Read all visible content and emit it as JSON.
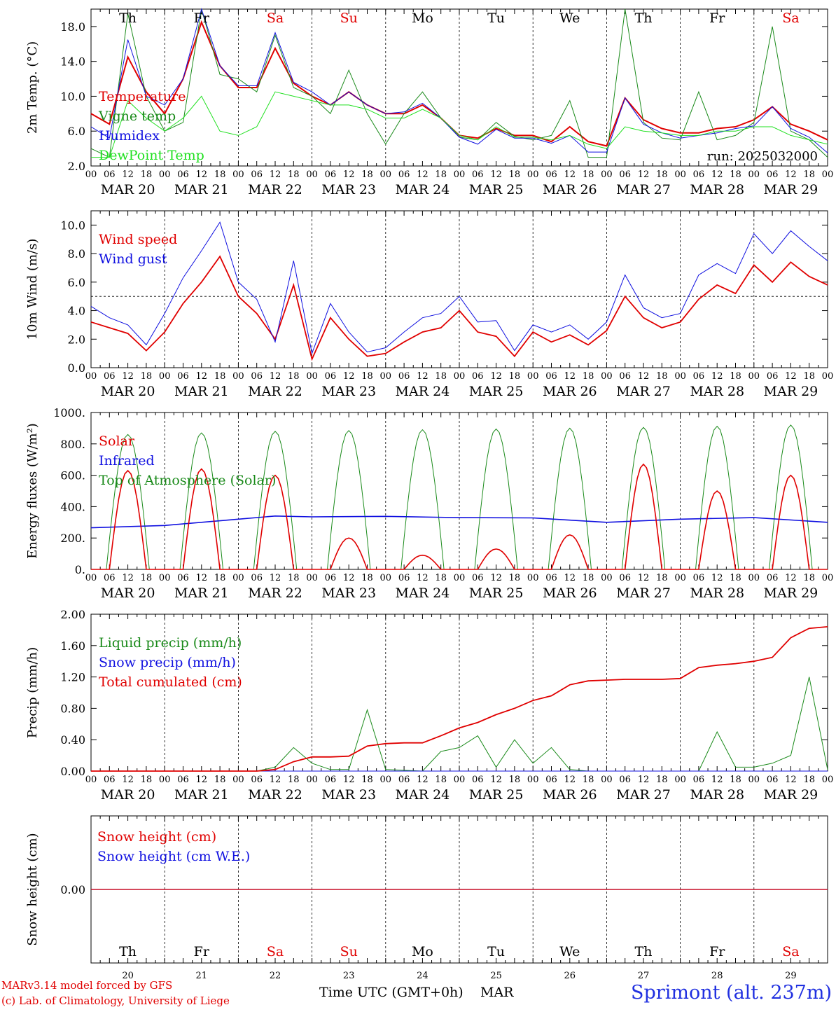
{
  "colors": {
    "red": "#e00000",
    "green": "#1a8a1a",
    "blue": "#1010e0",
    "lightgreen": "#20e020",
    "weekend": "#e00000",
    "weekday": "#000000",
    "siteBlue": "#2030e0"
  },
  "x_axis": {
    "hour_labels": [
      "00",
      "06",
      "12",
      "18"
    ],
    "final_hour_label": "00",
    "date_labels": [
      "MAR 20",
      "MAR 21",
      "MAR 22",
      "MAR 23",
      "MAR 24",
      "MAR 25",
      "MAR 26",
      "MAR 27",
      "MAR 28",
      "MAR 29"
    ],
    "day_names": [
      {
        "name": "Th",
        "weekend": false
      },
      {
        "name": "Fr",
        "weekend": false
      },
      {
        "name": "Sa",
        "weekend": true
      },
      {
        "name": "Su",
        "weekend": true
      },
      {
        "name": "Mo",
        "weekend": false
      },
      {
        "name": "Tu",
        "weekend": false
      },
      {
        "name": "We",
        "weekend": false
      },
      {
        "name": "Th",
        "weekend": false
      },
      {
        "name": "Fr",
        "weekend": false
      },
      {
        "name": "Sa",
        "weekend": true
      }
    ],
    "day_numbers": [
      "20",
      "21",
      "22",
      "23",
      "24",
      "25",
      "26",
      "27",
      "28",
      "29"
    ],
    "hours_range": [
      0,
      240
    ]
  },
  "footer": {
    "model_line": "MARv3.14 model forced by GFS",
    "credit_line": "(c) Lab. of Climatology, University of Liege",
    "axis_title": "Time UTC (GMT+0h)",
    "month": "MAR",
    "site": "Sprimont (alt. 237m)"
  },
  "chart_data": [
    {
      "type": "line",
      "ylabel": "2m Temp. (°C)",
      "ylim": [
        2.0,
        20.0
      ],
      "yticks": [
        "2.0",
        "6.0",
        "10.0",
        "14.0",
        "18.0"
      ],
      "ytick_values": [
        2,
        6,
        10,
        14,
        18
      ],
      "annotation": "run: 2025032000",
      "x_hours": [
        0,
        6,
        12,
        18,
        24,
        30,
        36,
        42,
        48,
        54,
        60,
        66,
        72,
        78,
        84,
        90,
        96,
        102,
        108,
        114,
        120,
        126,
        132,
        138,
        144,
        150,
        156,
        162,
        168,
        174,
        180,
        186,
        192,
        198,
        204,
        210,
        216,
        222,
        228,
        234,
        240
      ],
      "series": [
        {
          "name": "Temperature",
          "color": "red",
          "values": [
            8.0,
            6.8,
            14.5,
            10.5,
            8.0,
            12.0,
            18.5,
            13.5,
            11.0,
            11.0,
            15.5,
            11.5,
            10.0,
            9.0,
            10.5,
            9.0,
            8.0,
            8.0,
            9.0,
            7.5,
            5.5,
            5.2,
            6.3,
            5.5,
            5.5,
            4.8,
            6.5,
            4.8,
            4.3,
            9.8,
            7.3,
            6.3,
            5.8,
            5.8,
            6.3,
            6.5,
            7.3,
            8.8,
            6.8,
            6.0,
            5.0
          ]
        },
        {
          "name": "Vigne temp",
          "color": "green",
          "values": [
            4.0,
            3.0,
            19.5,
            10.0,
            6.0,
            7.0,
            20.0,
            12.5,
            12.0,
            10.5,
            17.0,
            11.0,
            10.0,
            8.0,
            13.0,
            8.0,
            4.5,
            8.0,
            10.5,
            7.5,
            5.3,
            5.0,
            7.0,
            5.4,
            5.0,
            5.5,
            9.5,
            3.0,
            3.0,
            20.0,
            7.0,
            5.2,
            5.0,
            10.5,
            5.0,
            5.5,
            7.0,
            18.0,
            6.0,
            5.0,
            3.0
          ]
        },
        {
          "name": "Humidex",
          "color": "blue",
          "values": [
            6.5,
            5.2,
            16.5,
            10.0,
            9.0,
            12.0,
            20.0,
            13.5,
            11.2,
            11.2,
            17.3,
            11.6,
            10.5,
            9.0,
            10.5,
            9.0,
            8.0,
            8.2,
            9.2,
            7.5,
            5.3,
            4.5,
            6.2,
            5.2,
            5.2,
            4.6,
            5.5,
            3.6,
            3.6,
            9.8,
            6.8,
            5.8,
            5.2,
            5.5,
            5.8,
            6.3,
            6.6,
            8.8,
            6.3,
            5.3,
            3.5
          ]
        },
        {
          "name": "DewPoint Temp",
          "color": "lightgreen",
          "values": [
            3.0,
            3.0,
            9.5,
            7.5,
            6.0,
            7.5,
            10.0,
            6.0,
            5.5,
            6.5,
            10.5,
            10.0,
            9.5,
            9.0,
            9.0,
            8.5,
            7.5,
            7.5,
            8.5,
            7.5,
            5.5,
            5.0,
            6.5,
            5.3,
            5.3,
            5.0,
            5.5,
            4.5,
            4.0,
            6.5,
            6.0,
            5.8,
            5.5,
            5.5,
            6.0,
            6.0,
            6.5,
            6.5,
            5.5,
            5.0,
            4.5
          ]
        }
      ]
    },
    {
      "type": "line",
      "ylabel": "10m Wind (m/s)",
      "ylim": [
        0.0,
        11.0
      ],
      "yticks": [
        "0.0",
        "2.0",
        "4.0",
        "6.0",
        "8.0",
        "10.0"
      ],
      "ytick_values": [
        0,
        2,
        4,
        6,
        8,
        10
      ],
      "reference_line": 5.0,
      "x_hours": [
        0,
        6,
        12,
        18,
        24,
        30,
        36,
        42,
        48,
        54,
        60,
        66,
        72,
        78,
        84,
        90,
        96,
        102,
        108,
        114,
        120,
        126,
        132,
        138,
        144,
        150,
        156,
        162,
        168,
        174,
        180,
        186,
        192,
        198,
        204,
        210,
        216,
        222,
        228,
        234,
        240
      ],
      "series": [
        {
          "name": "Wind speed",
          "color": "red",
          "values": [
            3.2,
            2.8,
            2.4,
            1.2,
            2.5,
            4.5,
            6.0,
            7.8,
            5.0,
            3.8,
            2.0,
            5.8,
            0.6,
            3.5,
            2.0,
            0.8,
            1.0,
            1.8,
            2.5,
            2.8,
            4.0,
            2.5,
            2.2,
            0.8,
            2.5,
            1.8,
            2.3,
            1.6,
            2.6,
            5.0,
            3.5,
            2.8,
            3.2,
            4.8,
            5.8,
            5.2,
            7.2,
            6.0,
            7.4,
            6.4,
            5.8
          ]
        },
        {
          "name": "Wind gust",
          "color": "blue",
          "values": [
            4.3,
            3.5,
            3.0,
            1.6,
            3.8,
            6.3,
            8.2,
            10.2,
            6.0,
            4.8,
            1.8,
            7.5,
            1.0,
            4.5,
            2.5,
            1.1,
            1.4,
            2.5,
            3.5,
            3.8,
            5.0,
            3.2,
            3.3,
            1.2,
            3.0,
            2.5,
            3.0,
            2.0,
            3.2,
            6.5,
            4.2,
            3.5,
            3.8,
            6.5,
            7.3,
            6.6,
            9.4,
            8.0,
            9.6,
            8.5,
            7.5
          ]
        }
      ]
    },
    {
      "type": "line",
      "ylabel": "Energy fluxes (W/m²)",
      "ylim": [
        0,
        1000
      ],
      "yticks": [
        "0.",
        "200.",
        "400.",
        "600.",
        "800.",
        "1000."
      ],
      "ytick_values": [
        0,
        200,
        400,
        600,
        800,
        1000
      ],
      "daily_peaks": {
        "solar": [
          630,
          640,
          600,
          200,
          90,
          130,
          220,
          670,
          500,
          600
        ],
        "toa": [
          860,
          870,
          880,
          885,
          890,
          895,
          900,
          905,
          912,
          920
        ]
      },
      "infrared": {
        "x_hours": [
          0,
          24,
          48,
          60,
          72,
          96,
          120,
          144,
          168,
          192,
          216,
          240
        ],
        "values": [
          265,
          280,
          320,
          340,
          335,
          338,
          330,
          328,
          300,
          320,
          330,
          300
        ]
      },
      "series": [
        {
          "name": "Solar",
          "color": "red"
        },
        {
          "name": "Infrared",
          "color": "blue"
        },
        {
          "name": "Top of Atmosphere (Solar)",
          "color": "green"
        }
      ]
    },
    {
      "type": "line",
      "ylabel": "Precip (mm/h)",
      "ylim": [
        0.0,
        2.0
      ],
      "yticks": [
        "0.00",
        "0.40",
        "0.80",
        "1.20",
        "1.60",
        "2.00"
      ],
      "ytick_values": [
        0,
        0.4,
        0.8,
        1.2,
        1.6,
        2.0
      ],
      "x_hours": [
        0,
        6,
        12,
        18,
        24,
        30,
        36,
        42,
        48,
        54,
        60,
        66,
        72,
        78,
        84,
        90,
        96,
        102,
        108,
        114,
        120,
        126,
        132,
        138,
        144,
        150,
        156,
        162,
        168,
        174,
        180,
        186,
        192,
        198,
        204,
        210,
        216,
        222,
        228,
        234,
        240
      ],
      "series": [
        {
          "name": "Liquid precip (mm/h)",
          "color": "green",
          "values": [
            0,
            0,
            0,
            0,
            0,
            0,
            0,
            0,
            0,
            0,
            0.05,
            0.3,
            0.1,
            0.02,
            0.02,
            0.78,
            0.02,
            0.01,
            0,
            0.25,
            0.3,
            0.45,
            0.05,
            0.4,
            0.1,
            0.3,
            0.02,
            0,
            0,
            0,
            0,
            0,
            0,
            0,
            0.5,
            0.05,
            0.05,
            0.1,
            0.2,
            1.2,
            0.02
          ]
        },
        {
          "name": "Snow precip (mm/h)",
          "color": "blue",
          "values": [
            0,
            0,
            0,
            0,
            0,
            0,
            0,
            0,
            0,
            0,
            0,
            0,
            0,
            0,
            0,
            0,
            0,
            0,
            0,
            0,
            0,
            0,
            0,
            0,
            0,
            0,
            0,
            0,
            0,
            0,
            0,
            0,
            0,
            0,
            0,
            0,
            0,
            0,
            0,
            0,
            0
          ]
        },
        {
          "name": "Total cumulated (cm)",
          "color": "red",
          "values": [
            0,
            0,
            0,
            0,
            0,
            0,
            0,
            0,
            0,
            0,
            0.02,
            0.12,
            0.18,
            0.18,
            0.19,
            0.32,
            0.35,
            0.36,
            0.36,
            0.45,
            0.55,
            0.62,
            0.72,
            0.8,
            0.9,
            0.96,
            1.1,
            1.15,
            1.16,
            1.17,
            1.17,
            1.17,
            1.18,
            1.32,
            1.35,
            1.37,
            1.4,
            1.45,
            1.7,
            1.82,
            1.84
          ]
        }
      ]
    },
    {
      "type": "line",
      "ylabel": "Snow height (cm)",
      "ylim": [
        -1.0,
        1.0
      ],
      "yticks": [
        "0.00"
      ],
      "ytick_values": [
        0
      ],
      "series": [
        {
          "name": "Snow height (cm)",
          "color": "red",
          "values": [
            0,
            0
          ]
        },
        {
          "name": "Snow height (cm W.E.)",
          "color": "blue",
          "values": [
            0,
            0
          ]
        }
      ]
    }
  ]
}
